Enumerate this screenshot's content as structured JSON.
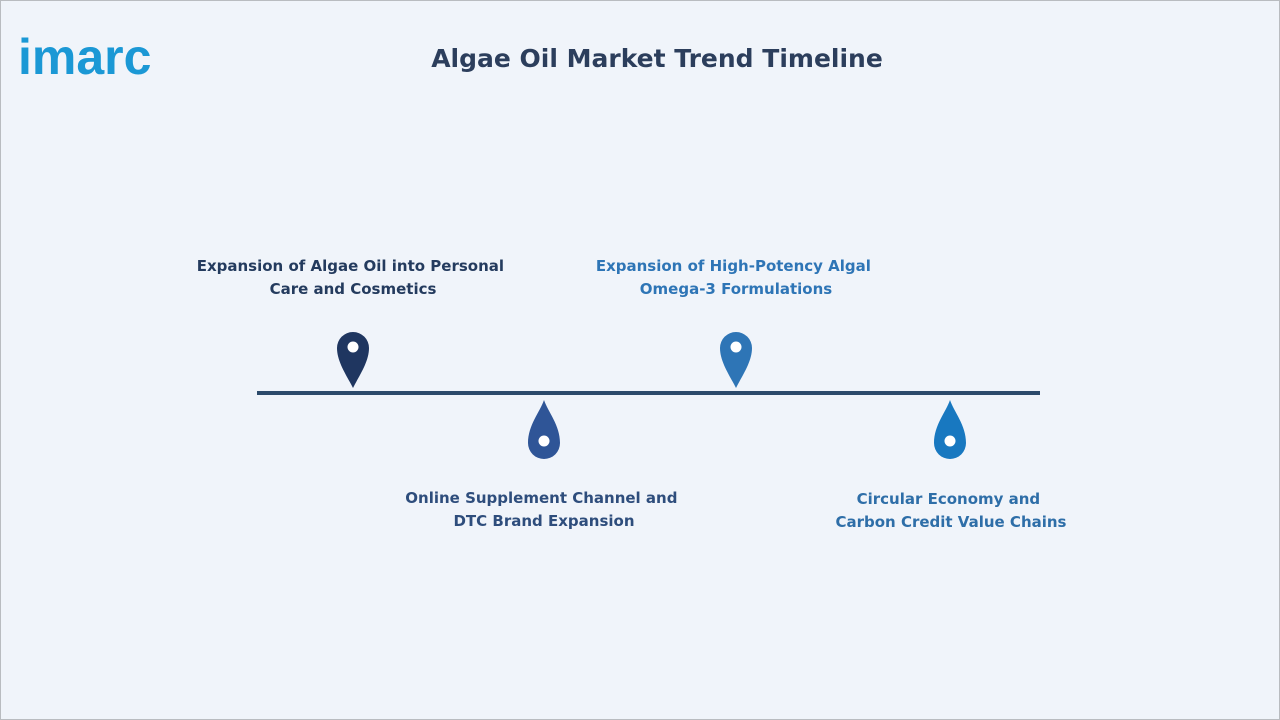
{
  "logo": "imarc",
  "title": "Algae Oil Market Trend Timeline",
  "items": [
    {
      "lines": [
        "Expansion of Algae Oil into Personal",
        "Care and Cosmetics"
      ]
    },
    {
      "lines": [
        "Online Supplement Channel and",
        "DTC Brand Expansion"
      ]
    },
    {
      "lines": [
        "Expansion of High-Potency Algal",
        "Omega-3 Formulations"
      ]
    },
    {
      "lines": [
        "Circular Economy and",
        "Carbon Credit Value Chains"
      ]
    }
  ]
}
